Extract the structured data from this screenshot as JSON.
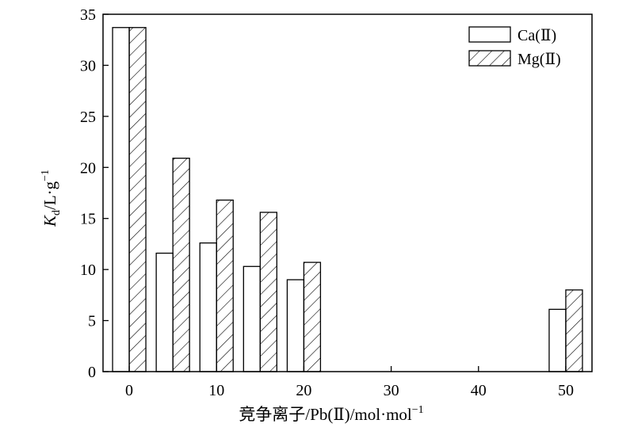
{
  "chart_data": {
    "type": "bar",
    "x": [
      0,
      5,
      10,
      15,
      20,
      50
    ],
    "series": [
      {
        "name": "Ca(Ⅱ)",
        "values": [
          33.7,
          11.6,
          12.6,
          10.3,
          9.0,
          6.1
        ],
        "pattern": "none"
      },
      {
        "name": "Mg(Ⅱ)",
        "values": [
          33.7,
          20.9,
          16.8,
          15.6,
          10.7,
          8.0
        ],
        "pattern": "hatch"
      }
    ],
    "xlabel": "竞争离子/Pb(Ⅱ)/mol·mol",
    "xlabel_sup": "−1",
    "ylabel": {
      "italic": "K",
      "sub": "d",
      "text": "/L·g",
      "sup": "−1"
    },
    "xlim": [
      -3,
      53
    ],
    "ylim": [
      0,
      35
    ],
    "xticks": [
      0,
      10,
      20,
      30,
      40,
      50
    ],
    "yticks": [
      0,
      5,
      10,
      15,
      20,
      25,
      30,
      35
    ],
    "legend_position": "top-right",
    "grid": false
  }
}
